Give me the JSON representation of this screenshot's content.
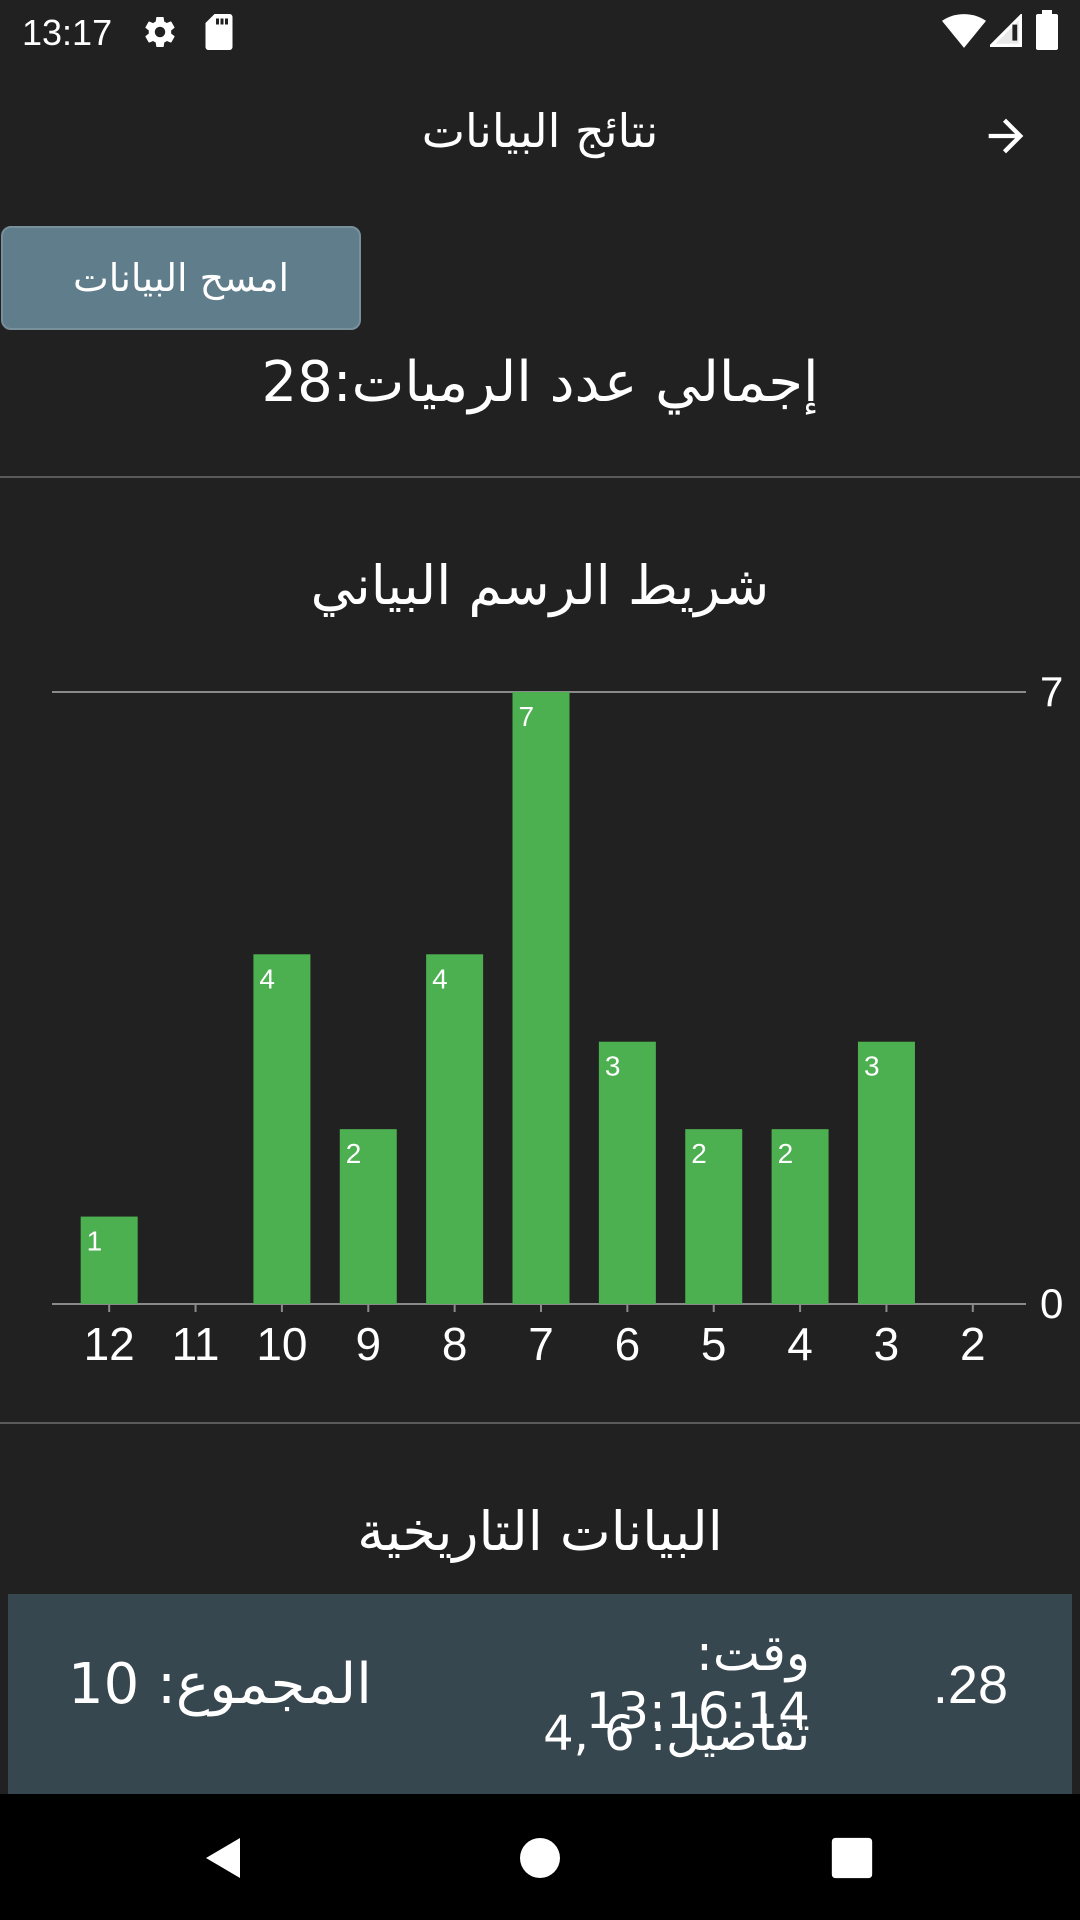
{
  "status_bar": {
    "time": "13:17",
    "icons": [
      "gear-icon",
      "sd-card-icon",
      "wifi-icon",
      "signal-icon",
      "battery-icon"
    ]
  },
  "app_bar": {
    "title": "نتائج البيانات",
    "back_icon": "arrow-right-icon"
  },
  "clear_button_label": "امسح البيانات",
  "total_throws": "إجمالي عدد الرميات:28",
  "chart_section_title": "شريط الرسم البياني",
  "chart_data": {
    "type": "bar",
    "categories": [
      "12",
      "11",
      "10",
      "9",
      "8",
      "7",
      "6",
      "5",
      "4",
      "3",
      "2"
    ],
    "values": [
      1,
      0,
      4,
      2,
      4,
      7,
      3,
      2,
      2,
      3,
      0
    ],
    "data_labels": [
      "1",
      "",
      "4",
      "2",
      "4",
      "7",
      "3",
      "2",
      "2",
      "3",
      ""
    ],
    "ylim": [
      0,
      7
    ],
    "y_ticks": [
      "0",
      "7"
    ],
    "y_axis_side": "right",
    "grid": true,
    "bar_color": "#4caf50"
  },
  "history": {
    "title": "البيانات التاريخية",
    "entries": [
      {
        "index": ".28",
        "time": "وقت: 13:16:14",
        "details": "تفاصيل: 6 ,4",
        "sum": "المجموع: 10"
      }
    ]
  },
  "colors": {
    "background": "#212121",
    "accent_bar": "#4caf50",
    "button": "#607d8b",
    "history_card": "#37474f"
  },
  "nav_bar": {
    "icons": [
      "back-triangle-icon",
      "home-circle-icon",
      "recents-square-icon"
    ]
  }
}
